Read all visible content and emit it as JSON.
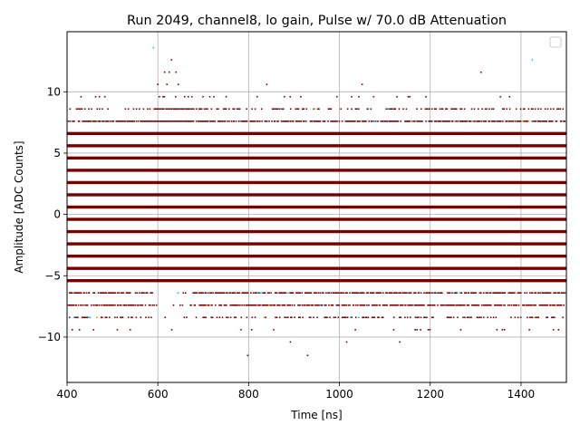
{
  "chart_data": {
    "type": "scatter",
    "title": "Run 2049, channel8, lo gain, Pulse w/ 70.0 dB Attenuation",
    "xlabel": "Time [ns]",
    "ylabel": "Amplitude [ADC Counts]",
    "xlim": [
      400,
      1500
    ],
    "ylim": [
      -13.7,
      14.9
    ],
    "x_ticks": [
      400,
      600,
      800,
      1000,
      1200,
      1400
    ],
    "y_ticks": [
      -10,
      -5,
      0,
      5,
      10
    ],
    "grid": true,
    "legend": "top-right (empty)",
    "colors": {
      "dense": "#7a0000",
      "accent_cyan": "#00d0e8",
      "accent_orange": "#f5a000"
    },
    "levels": [
      {
        "y": 6.6,
        "pattern": "continuous"
      },
      {
        "y": 5.6,
        "pattern": "continuous"
      },
      {
        "y": 4.6,
        "pattern": "continuous"
      },
      {
        "y": 3.6,
        "pattern": "continuous"
      },
      {
        "y": 2.6,
        "pattern": "continuous"
      },
      {
        "y": 1.6,
        "pattern": "continuous"
      },
      {
        "y": 0.6,
        "pattern": "continuous"
      },
      {
        "y": -0.4,
        "pattern": "continuous"
      },
      {
        "y": -1.4,
        "pattern": "continuous"
      },
      {
        "y": -2.4,
        "pattern": "continuous"
      },
      {
        "y": -3.4,
        "pattern": "continuous"
      },
      {
        "y": -4.4,
        "pattern": "continuous"
      },
      {
        "y": -5.4,
        "pattern": "continuous"
      },
      {
        "y": 7.6,
        "pattern": "dense-partial"
      },
      {
        "y": -6.4,
        "pattern": "dense-partial"
      },
      {
        "y": -7.4,
        "pattern": "dense-partial"
      },
      {
        "y": 8.6,
        "pattern": "sparse"
      },
      {
        "y": -8.4,
        "pattern": "sparse"
      },
      {
        "y": 9.6,
        "pattern": "rare"
      },
      {
        "y": -9.4,
        "pattern": "rare"
      }
    ],
    "pulse_region": {
      "x": [
        590,
        680
      ],
      "note": "upward spike in time window"
    },
    "outliers": [
      {
        "x": 590,
        "y": 13.6,
        "color": "cyan"
      },
      {
        "x": 630,
        "y": 12.6,
        "color": "dark"
      },
      {
        "x": 625,
        "y": 11.6,
        "color": "dark"
      },
      {
        "x": 640,
        "y": 11.6,
        "color": "dark"
      },
      {
        "x": 615,
        "y": 11.6,
        "color": "dark"
      },
      {
        "x": 600,
        "y": 10.6,
        "color": "dark"
      },
      {
        "x": 620,
        "y": 10.6,
        "color": "dark"
      },
      {
        "x": 645,
        "y": 10.6,
        "color": "dark"
      },
      {
        "x": 840,
        "y": 10.6,
        "color": "dark"
      },
      {
        "x": 1050,
        "y": 10.6,
        "color": "dark"
      },
      {
        "x": 1312,
        "y": 11.6,
        "color": "dark"
      },
      {
        "x": 1425,
        "y": 12.6,
        "color": "cyan"
      },
      {
        "x": 798,
        "y": -11.5,
        "color": "dark"
      },
      {
        "x": 930,
        "y": -11.5,
        "color": "dark"
      },
      {
        "x": 892,
        "y": -10.4,
        "color": "dark"
      },
      {
        "x": 1133,
        "y": -10.4,
        "color": "dark"
      },
      {
        "x": 1016,
        "y": -10.4,
        "color": "dark"
      },
      {
        "x": 618,
        "y": -5.4,
        "color": "dark"
      },
      {
        "x": 630,
        "y": -5.4,
        "color": "dark"
      },
      {
        "x": 650,
        "y": -4.4,
        "color": "dark"
      }
    ]
  }
}
